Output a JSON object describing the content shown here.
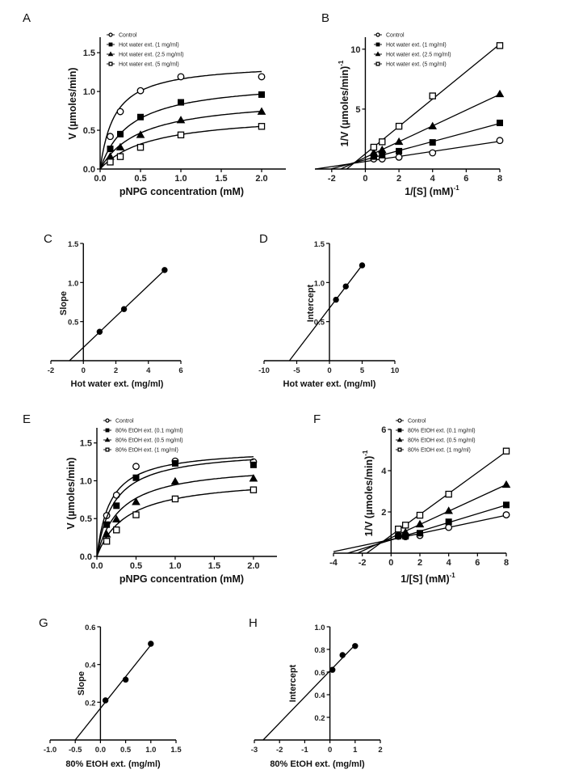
{
  "chart_data": [
    {
      "panel_label": "A",
      "type": "scatter",
      "xlabel": "pNPG concentration (mM)",
      "ylabel": "V (µmoles/min)",
      "ylabel_sup": "",
      "xlim": [
        0,
        2.3
      ],
      "ylim": [
        0,
        1.7
      ],
      "xticks": [
        "0.0",
        "0.5",
        "1.0",
        "1.5",
        "2.0"
      ],
      "yticks": [
        "0.0",
        "0.5",
        "1.0",
        "1.5"
      ],
      "grid": false,
      "legend_placement": "top-left",
      "fit": "michaelis-menten",
      "series": [
        {
          "name": "Control",
          "marker": "open-circle",
          "x": [
            0.125,
            0.25,
            0.5,
            1,
            2
          ],
          "y": [
            0.42,
            0.74,
            1.01,
            1.19,
            1.19
          ],
          "vmax": 1.37,
          "km": 0.18
        },
        {
          "name": "Hot water ext. (1 mg/ml)",
          "marker": "filled-square",
          "x": [
            0.125,
            0.25,
            0.5,
            1,
            2
          ],
          "y": [
            0.26,
            0.45,
            0.67,
            0.86,
            0.96
          ],
          "vmax": 1.15,
          "km": 0.38
        },
        {
          "name": "Hot water ext. (2.5 mg/ml)",
          "marker": "filled-triangle",
          "x": [
            0.125,
            0.25,
            0.5,
            1,
            2
          ],
          "y": [
            0.16,
            0.28,
            0.44,
            0.63,
            0.74
          ],
          "vmax": 0.93,
          "km": 0.5
        },
        {
          "name": "Hot water ext. (5 mg/ml)",
          "marker": "open-square",
          "x": [
            0.125,
            0.25,
            0.5,
            1,
            2
          ],
          "y": [
            0.09,
            0.16,
            0.28,
            0.44,
            0.55
          ],
          "vmax": 0.72,
          "km": 0.62
        }
      ]
    },
    {
      "panel_label": "B",
      "type": "scatter",
      "xlabel": "1/[S] (mM)",
      "xlabel_sup": "-1",
      "ylabel": "1/V (µmoles/min)",
      "ylabel_sup": "-1",
      "xlim": [
        -3,
        8
      ],
      "ylim": [
        0,
        11
      ],
      "xticks": [
        "-2",
        "0",
        "2",
        "4",
        "6",
        "8"
      ],
      "yticks": [
        "5",
        "10"
      ],
      "grid": false,
      "legend_placement": "top-left",
      "fit": "linear",
      "series": [
        {
          "name": "Control",
          "marker": "open-circle",
          "x": [
            0.5,
            1,
            2,
            4,
            8
          ],
          "y": [
            0.84,
            0.84,
            0.99,
            1.35,
            2.38
          ]
        },
        {
          "name": "Hot water ext. (1 mg/ml)",
          "marker": "filled-square",
          "x": [
            0.5,
            1,
            2,
            4,
            8
          ],
          "y": [
            1.04,
            1.16,
            1.49,
            2.22,
            3.85
          ]
        },
        {
          "name": "Hot water ext. (2.5 mg/ml)",
          "marker": "filled-triangle",
          "x": [
            0.5,
            1,
            2,
            4,
            8
          ],
          "y": [
            1.35,
            1.59,
            2.27,
            3.57,
            6.25
          ]
        },
        {
          "name": "Hot water ext. (5 mg/ml)",
          "marker": "open-square",
          "x": [
            0.5,
            1,
            2,
            4,
            8
          ],
          "y": [
            1.82,
            2.27,
            3.57,
            6.1,
            10.3
          ]
        }
      ]
    },
    {
      "panel_label": "C",
      "type": "scatter",
      "xlabel": "Hot water ext. (mg/ml)",
      "ylabel": "Slope",
      "ylabel_sup": "",
      "xlim": [
        -2,
        6
      ],
      "ylim": [
        0,
        1.5
      ],
      "xticks": [
        "-2",
        "0",
        "2",
        "4",
        "6"
      ],
      "yticks": [
        "0.5",
        "1.0",
        "1.5"
      ],
      "grid": false,
      "fit": "linear",
      "series": [
        {
          "marker": "filled-circle",
          "x": [
            1,
            2.5,
            5
          ],
          "y": [
            0.37,
            0.66,
            1.16
          ]
        }
      ]
    },
    {
      "panel_label": "D",
      "type": "scatter",
      "xlabel": "Hot water ext. (mg/ml)",
      "ylabel": "Intercept",
      "ylabel_sup": "",
      "xlim": [
        -10,
        10
      ],
      "ylim": [
        0,
        1.5
      ],
      "xticks": [
        "-10",
        "-5",
        "0",
        "5",
        "10"
      ],
      "yticks": [
        "0.5",
        "1.0",
        "1.5"
      ],
      "grid": false,
      "fit": "linear",
      "series": [
        {
          "marker": "filled-circle",
          "x": [
            1,
            2.5,
            5
          ],
          "y": [
            0.78,
            0.95,
            1.22
          ]
        }
      ]
    },
    {
      "panel_label": "E",
      "type": "scatter",
      "xlabel": "pNPG concentration (mM)",
      "ylabel": "V (µmoles/min)",
      "ylabel_sup": "",
      "xlim": [
        0,
        2.3
      ],
      "ylim": [
        0,
        1.7
      ],
      "xticks": [
        "0.0",
        "0.5",
        "1.0",
        "1.5",
        "2.0"
      ],
      "yticks": [
        "0.0",
        "0.5",
        "1.0",
        "1.5"
      ],
      "grid": false,
      "legend_placement": "top-left",
      "fit": "michaelis-menten",
      "series": [
        {
          "name": "Control",
          "marker": "open-circle",
          "x": [
            0.125,
            0.25,
            0.5,
            1,
            2
          ],
          "y": [
            0.54,
            0.81,
            1.19,
            1.26,
            1.25
          ],
          "vmax": 1.43,
          "km": 0.17
        },
        {
          "name": "80% EtOH ext. (0.1 mg/ml)",
          "marker": "filled-square",
          "x": [
            0.125,
            0.25,
            0.5,
            1,
            2
          ],
          "y": [
            0.42,
            0.67,
            1.04,
            1.23,
            1.21
          ],
          "vmax": 1.42,
          "km": 0.22
        },
        {
          "name": "80% EtOH ext. (0.5 mg/ml)",
          "marker": "filled-triangle",
          "x": [
            0.125,
            0.25,
            0.5,
            1,
            2
          ],
          "y": [
            0.29,
            0.49,
            0.72,
            0.99,
            1.03
          ],
          "vmax": 1.23,
          "km": 0.3
        },
        {
          "name": "80% EtOH ext. (1 mg/ml)",
          "marker": "open-square",
          "x": [
            0.125,
            0.25,
            0.5,
            1,
            2
          ],
          "y": [
            0.2,
            0.35,
            0.55,
            0.76,
            0.88
          ],
          "vmax": 1.05,
          "km": 0.38
        }
      ]
    },
    {
      "panel_label": "F",
      "type": "scatter",
      "xlabel": "1/[S] (mM)",
      "xlabel_sup": "-1",
      "ylabel": "1/V (µmoles/min)",
      "ylabel_sup": "-1",
      "xlim": [
        -4,
        8
      ],
      "ylim": [
        0,
        6
      ],
      "xticks": [
        "-4",
        "-2",
        "0",
        "2",
        "4",
        "6",
        "8"
      ],
      "yticks": [
        "2",
        "4",
        "6"
      ],
      "grid": false,
      "legend_placement": "top-left",
      "fit": "linear",
      "series": [
        {
          "name": "Control",
          "marker": "open-circle",
          "x": [
            0.5,
            1,
            2,
            4,
            8
          ],
          "y": [
            0.82,
            0.8,
            0.86,
            1.25,
            1.86
          ]
        },
        {
          "name": "80% EtOH ext. (0.1 mg/ml)",
          "marker": "filled-square",
          "x": [
            0.5,
            1,
            2,
            4,
            8
          ],
          "y": [
            0.83,
            0.82,
            0.97,
            1.52,
            2.34
          ]
        },
        {
          "name": "80% EtOH ext. (0.5 mg/ml)",
          "marker": "filled-triangle",
          "x": [
            0.5,
            1,
            2,
            4,
            8
          ],
          "y": [
            0.95,
            1.01,
            1.4,
            2.05,
            3.32
          ]
        },
        {
          "name": "80% EtOH ext. (1 mg/ml)",
          "marker": "open-square",
          "x": [
            0.5,
            1,
            2,
            4,
            8
          ],
          "y": [
            1.17,
            1.36,
            1.84,
            2.86,
            4.95
          ]
        }
      ]
    },
    {
      "panel_label": "G",
      "type": "scatter",
      "xlabel": "80% EtOH ext. (mg/ml)",
      "ylabel": "Slope",
      "ylabel_sup": "",
      "xlim": [
        -1,
        1.5
      ],
      "ylim": [
        0,
        0.6
      ],
      "xticks": [
        "-1.0",
        "-0.5",
        "0.0",
        "0.5",
        "1.0",
        "1.5"
      ],
      "yticks": [
        "0.2",
        "0.4",
        "0.6"
      ],
      "grid": false,
      "fit": "linear",
      "series": [
        {
          "marker": "filled-circle",
          "x": [
            0.1,
            0.5,
            1
          ],
          "y": [
            0.21,
            0.32,
            0.51
          ]
        }
      ]
    },
    {
      "panel_label": "H",
      "type": "scatter",
      "xlabel": "80% EtOH ext. (mg/ml)",
      "ylabel": "Intercept",
      "ylabel_sup": "",
      "xlim": [
        -3,
        2
      ],
      "ylim": [
        0,
        1.0
      ],
      "xticks": [
        "-3",
        "-2",
        "-1",
        "0",
        "1",
        "2"
      ],
      "yticks": [
        "0.2",
        "0.4",
        "0.6",
        "0.8",
        "1.0"
      ],
      "grid": false,
      "fit": "linear",
      "series": [
        {
          "marker": "filled-circle",
          "x": [
            0.1,
            0.5,
            1
          ],
          "y": [
            0.62,
            0.75,
            0.83
          ]
        }
      ]
    }
  ]
}
